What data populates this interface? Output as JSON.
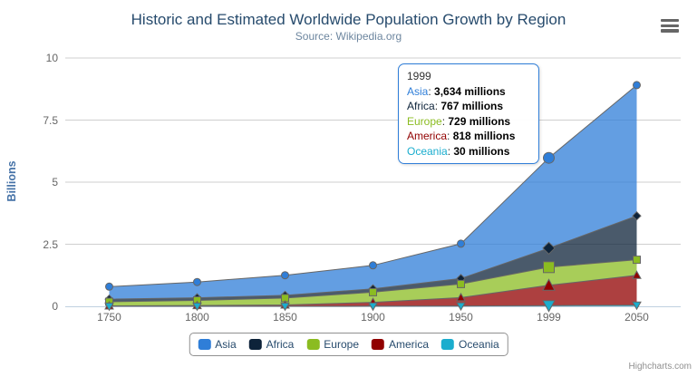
{
  "credits": "Highcharts.com",
  "chart_data": {
    "type": "area",
    "stacking": "normal",
    "title": "Historic and Estimated Worldwide Population Growth by Region",
    "subtitle": "Source: Wikipedia.org",
    "categories": [
      "1750",
      "1800",
      "1850",
      "1900",
      "1950",
      "1999",
      "2050"
    ],
    "series": [
      {
        "name": "Asia",
        "color": "#2f7ed8",
        "marker": "circle",
        "values": [
          502,
          635,
          809,
          947,
          1402,
          3634,
          5268
        ]
      },
      {
        "name": "Africa",
        "color": "#0d233a",
        "marker": "diamond",
        "values": [
          106,
          107,
          111,
          133,
          221,
          767,
          1766
        ]
      },
      {
        "name": "Europe",
        "color": "#8bbc21",
        "marker": "square",
        "values": [
          163,
          203,
          276,
          408,
          547,
          729,
          628
        ]
      },
      {
        "name": "America",
        "color": "#910000",
        "marker": "triangle",
        "values": [
          18,
          31,
          54,
          156,
          339,
          818,
          1201
        ]
      },
      {
        "name": "Oceania",
        "color": "#1aadce",
        "marker": "triangle-down",
        "values": [
          2,
          2,
          2,
          6,
          13,
          30,
          46
        ]
      }
    ],
    "values_unit": "millions",
    "ylabel": "Billions",
    "yticks": [
      0,
      2.5,
      5,
      7.5,
      10
    ],
    "ylim": [
      0,
      10
    ],
    "grid": true,
    "legend_position": "bottom",
    "hover_category": "1999",
    "hover_category_index": 5
  },
  "tooltip": {
    "header": "1999",
    "rows": [
      {
        "name": "Asia",
        "color": "#2f7ed8",
        "value": "3,634 millions"
      },
      {
        "name": "Africa",
        "color": "#0d233a",
        "value": "767 millions"
      },
      {
        "name": "Europe",
        "color": "#8bbc21",
        "value": "729 millions"
      },
      {
        "name": "America",
        "color": "#910000",
        "value": "818 millions"
      },
      {
        "name": "Oceania",
        "color": "#1aadce",
        "value": "30 millions"
      }
    ]
  },
  "colors": {
    "title": "#274b6d",
    "subtitle": "#6d869f",
    "yaxis_title": "#4572a7",
    "axis_labels": "#666666",
    "grid_line": "#cfcfcf",
    "axis_line": "#c0d0e0",
    "series_edge": "#666666",
    "tooltip_border": "#2f7ed8",
    "legend_text": "#274b6d",
    "legend_border": "#909090",
    "credits_text": "#909090"
  }
}
